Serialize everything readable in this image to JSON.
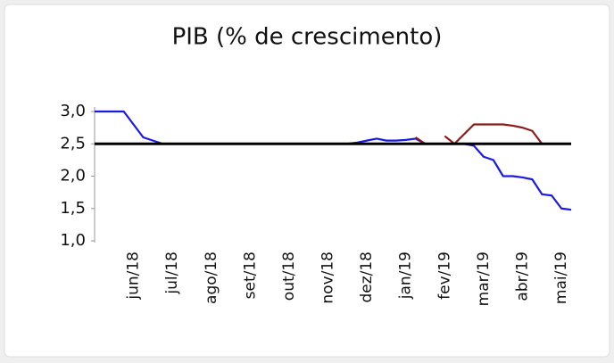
{
  "chart_data": {
    "type": "line",
    "title": "PIB (% de crescimento)",
    "categories": [
      null,
      null,
      null,
      null,
      "jun/18",
      null,
      null,
      null,
      "jul/18",
      null,
      null,
      null,
      "ago/18",
      null,
      null,
      null,
      "set/18",
      null,
      null,
      null,
      "out/18",
      null,
      null,
      null,
      "nov/18",
      null,
      null,
      null,
      "dez/18",
      null,
      null,
      null,
      "jan/19",
      null,
      null,
      null,
      "fev/19",
      null,
      null,
      null,
      "mar/19",
      null,
      null,
      null,
      "abr/19",
      null,
      null,
      null,
      "mai/19",
      null
    ],
    "series": [
      {
        "color": "#1a1ae6",
        "values": [
          3.0,
          3.0,
          3.0,
          3.0,
          2.8,
          2.6,
          2.55,
          2.5,
          2.5,
          2.5,
          2.5,
          2.5,
          2.5,
          2.5,
          2.5,
          2.5,
          2.5,
          2.5,
          2.5,
          2.5,
          2.5,
          2.5,
          2.5,
          2.5,
          2.5,
          2.5,
          2.5,
          2.52,
          2.55,
          2.58,
          2.55,
          2.55,
          2.56,
          2.58,
          2.5,
          2.5,
          2.5,
          2.5,
          2.5,
          2.47,
          2.3,
          2.25,
          2.0,
          2.0,
          1.98,
          1.95,
          1.72,
          1.7,
          1.5,
          1.48
        ]
      },
      {
        "color": "#8b1a1a",
        "values": [
          null,
          null,
          null,
          null,
          null,
          null,
          null,
          null,
          null,
          null,
          null,
          null,
          null,
          null,
          null,
          null,
          null,
          null,
          null,
          null,
          null,
          null,
          null,
          null,
          null,
          null,
          null,
          null,
          null,
          null,
          null,
          null,
          null,
          2.6,
          2.5,
          null,
          2.62,
          2.5,
          2.65,
          2.8,
          2.8,
          2.8,
          2.8,
          2.78,
          2.75,
          2.7,
          2.5,
          null,
          null,
          null
        ]
      },
      {
        "color": "#000000",
        "values": [
          2.5,
          2.5,
          2.5,
          2.5,
          2.5,
          2.5,
          2.5,
          2.5,
          2.5,
          2.5,
          2.5,
          2.5,
          2.5,
          2.5,
          2.5,
          2.5,
          2.5,
          2.5,
          2.5,
          2.5,
          2.5,
          2.5,
          2.5,
          2.5,
          2.5,
          2.5,
          2.5,
          2.5,
          2.5,
          2.5,
          2.5,
          2.5,
          2.5,
          2.5,
          2.5,
          2.5,
          2.5,
          2.5,
          2.5,
          2.5,
          2.5,
          2.5,
          2.5,
          2.5,
          2.5,
          2.5,
          2.5,
          2.5,
          2.5,
          2.5
        ]
      }
    ],
    "ylim": [
      1.0,
      3.0
    ],
    "yticks": [
      {
        "value": 1.0,
        "label": "1,0"
      },
      {
        "value": 1.5,
        "label": "1,5"
      },
      {
        "value": 2.0,
        "label": "2,0"
      },
      {
        "value": 2.5,
        "label": "2,5"
      },
      {
        "value": 3.0,
        "label": "3,0"
      }
    ]
  }
}
